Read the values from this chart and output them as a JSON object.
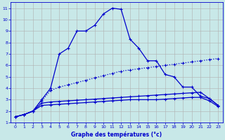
{
  "xlabel": "Graphe des températures (°c)",
  "bg_color": "#c8e8e8",
  "grid_color": "#b0b0b0",
  "line_color": "#0000cc",
  "xlim": [
    -0.5,
    23.5
  ],
  "ylim": [
    1,
    11.5
  ],
  "xticks": [
    0,
    1,
    2,
    3,
    4,
    5,
    6,
    7,
    8,
    9,
    10,
    11,
    12,
    13,
    14,
    15,
    16,
    17,
    18,
    19,
    20,
    21,
    22,
    23
  ],
  "yticks": [
    1,
    2,
    3,
    4,
    5,
    6,
    7,
    8,
    9,
    10,
    11
  ],
  "line1_x": [
    0,
    1,
    2,
    3,
    4,
    5,
    6,
    7,
    8,
    9,
    10,
    11,
    12,
    13,
    14,
    15,
    16,
    17,
    18,
    19,
    20,
    21,
    22,
    23
  ],
  "line1_y": [
    1.5,
    1.7,
    2.0,
    3.0,
    4.0,
    7.0,
    7.5,
    9.0,
    9.0,
    9.5,
    10.5,
    11.0,
    10.9,
    8.3,
    7.5,
    6.4,
    6.4,
    5.2,
    5.0,
    4.1,
    4.1,
    3.3,
    3.1,
    2.5
  ],
  "line1_dot": false,
  "line2_x": [
    0,
    1,
    2,
    3,
    4,
    5,
    6,
    7,
    8,
    9,
    10,
    11,
    12,
    13,
    14,
    15,
    16,
    17,
    18,
    19,
    20,
    21,
    22,
    23
  ],
  "line2_y": [
    1.5,
    1.7,
    2.0,
    2.9,
    3.8,
    4.1,
    4.3,
    4.5,
    4.7,
    4.9,
    5.1,
    5.3,
    5.5,
    5.6,
    5.7,
    5.8,
    5.9,
    6.0,
    6.1,
    6.2,
    6.3,
    6.4,
    6.5,
    6.6
  ],
  "line2_dot": true,
  "line3_x": [
    0,
    1,
    2,
    3,
    4,
    5,
    6,
    7,
    8,
    9,
    10,
    11,
    12,
    13,
    14,
    15,
    16,
    17,
    18,
    19,
    20,
    21,
    22,
    23
  ],
  "line3_y": [
    1.5,
    1.7,
    2.0,
    2.7,
    2.8,
    2.85,
    2.9,
    2.95,
    3.0,
    3.05,
    3.1,
    3.15,
    3.2,
    3.25,
    3.3,
    3.35,
    3.4,
    3.45,
    3.5,
    3.55,
    3.6,
    3.65,
    3.1,
    2.5
  ],
  "line3_dot": false,
  "line4_x": [
    0,
    1,
    2,
    3,
    4,
    5,
    6,
    7,
    8,
    9,
    10,
    11,
    12,
    13,
    14,
    15,
    16,
    17,
    18,
    19,
    20,
    21,
    22,
    23
  ],
  "line4_y": [
    1.5,
    1.7,
    2.0,
    2.5,
    2.55,
    2.6,
    2.65,
    2.7,
    2.75,
    2.8,
    2.85,
    2.9,
    2.95,
    3.0,
    3.0,
    3.0,
    3.0,
    3.05,
    3.1,
    3.15,
    3.2,
    3.2,
    2.9,
    2.4
  ],
  "line4_dot": false
}
